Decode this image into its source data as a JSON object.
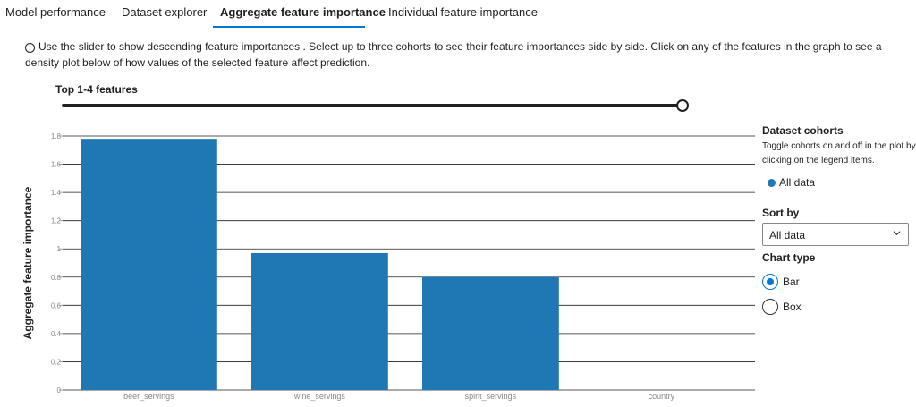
{
  "tabs": [
    {
      "label": "Model performance",
      "active": false
    },
    {
      "label": "Dataset explorer",
      "active": false
    },
    {
      "label": "Aggregate feature importance",
      "active": true
    },
    {
      "label": "Individual feature importance",
      "active": false
    }
  ],
  "info": {
    "icon": "info-icon",
    "text": "Use the slider to show descending feature importances . Select up to three cohorts to see their feature importances side by side. Click on any of the features in the graph to see a density plot below of how values of the selected feature affect prediction."
  },
  "slider": {
    "label": "Top 1-4 features",
    "value": 4,
    "max": 4
  },
  "sidebar": {
    "cohorts_title": "Dataset cohorts",
    "cohorts_desc": "Toggle cohorts on and off in the plot by clicking on the legend items.",
    "legend": [
      {
        "label": "All data",
        "color": "#1f77b4"
      }
    ],
    "sort_label": "Sort by",
    "sort_value": "All data",
    "chart_type_label": "Chart type",
    "chart_types": [
      {
        "label": "Bar",
        "checked": true
      },
      {
        "label": "Box",
        "checked": false
      }
    ]
  },
  "colors": {
    "bar": "#1f77b4",
    "accent": "#0078d4"
  },
  "chart_data": {
    "type": "bar",
    "categories": [
      "beer_servings",
      "wine_servings",
      "spirit_servings",
      "country"
    ],
    "series": [
      {
        "name": "All data",
        "values": [
          1.78,
          0.97,
          0.8,
          0
        ]
      }
    ],
    "ylabel": "Aggregate feature importance",
    "yticks": [
      0,
      0.2,
      0.4,
      0.6,
      0.8,
      1,
      1.2,
      1.4,
      1.6,
      1.8
    ],
    "ytick_labels": [
      "0",
      "0.2",
      "0.4",
      "0.6",
      "0.8",
      "1",
      "1.2",
      "1.4",
      "1.6",
      "1.8"
    ],
    "ylim": [
      0,
      1.8
    ],
    "grid": true
  }
}
